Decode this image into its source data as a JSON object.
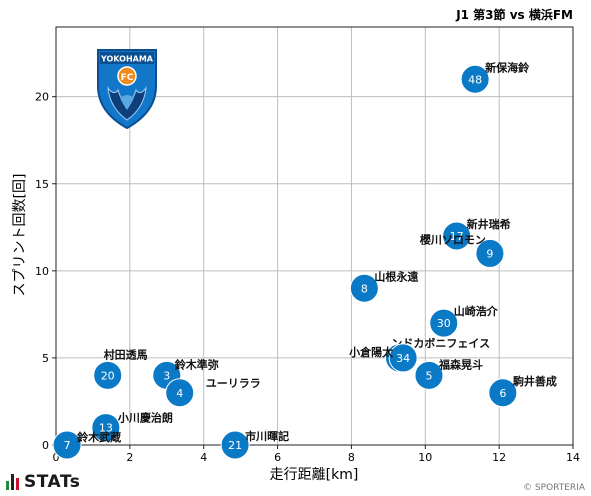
{
  "chart_data": {
    "type": "scatter",
    "title": "J1 第3節 vs 横浜FM",
    "xlabel": "走行距離[km]",
    "ylabel": "スプリント回数[回]",
    "xlim": [
      0,
      14
    ],
    "ylim": [
      0,
      24
    ],
    "xticks": [
      0,
      2,
      4,
      6,
      8,
      10,
      12,
      14
    ],
    "yticks": [
      0,
      5,
      10,
      15,
      20
    ],
    "grid": true,
    "marker_color": "#0a79c6",
    "points": [
      {
        "number": "48",
        "name": "新保海鈴",
        "x": 11.35,
        "y": 21
      },
      {
        "number": "17",
        "name": "新井瑞希",
        "x": 10.85,
        "y": 12
      },
      {
        "number": "9",
        "name": "櫻川ソロモン",
        "x": 11.75,
        "y": 11
      },
      {
        "number": "8",
        "name": "山根永遠",
        "x": 8.35,
        "y": 9
      },
      {
        "number": "30",
        "name": "山崎浩介",
        "x": 10.5,
        "y": 7
      },
      {
        "number": "3",
        "name": "ンドカボニフェイス",
        "x": 9.3,
        "y": 5
      },
      {
        "number": "34",
        "name": "小倉陽太",
        "x": 9.4,
        "y": 5
      },
      {
        "number": "5",
        "name": "福森晃斗",
        "x": 10.1,
        "y": 4
      },
      {
        "number": "6",
        "name": "駒井善成",
        "x": 12.1,
        "y": 3
      },
      {
        "number": "20",
        "name": "村田透馬",
        "x": 1.4,
        "y": 4
      },
      {
        "number": "3",
        "name": "鈴木準弥",
        "x": 3.0,
        "y": 4
      },
      {
        "number": "4",
        "name": "ユーリララ",
        "x": 3.35,
        "y": 3
      },
      {
        "number": "13",
        "name": "小川慶治朗",
        "x": 1.35,
        "y": 1
      },
      {
        "number": "7",
        "name": "鈴木武蔵",
        "x": 0.3,
        "y": 0
      },
      {
        "number": "21",
        "name": "市川暉記",
        "x": 4.85,
        "y": 0
      }
    ]
  },
  "emblem": {
    "text": "YOKOHAMA",
    "badge": "FC"
  },
  "footer": {
    "logo": "STATs",
    "copyright": "© SPORTERIA"
  },
  "colors": {
    "accent": "#0a79c6",
    "grid": "#bdbdbd",
    "logo_green": "#1f8a3a",
    "logo_red": "#c8102e"
  }
}
